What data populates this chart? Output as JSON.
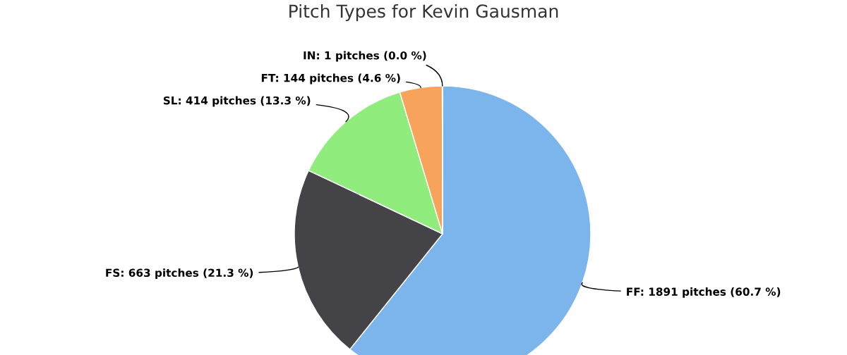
{
  "chart_data": {
    "type": "pie",
    "title": "Pitch Types for Kevin Gausman",
    "categories": [
      "FF: 1891 pitches (60.7 %)",
      "FS: 663 pitches (21.3 %)",
      "SL: 414 pitches (13.3 %)",
      "FT: 144 pitches (4.6 %)",
      "IN: 1 pitches (0.0 %)"
    ],
    "values": [
      1891,
      663,
      414,
      144,
      1
    ],
    "colors": [
      "#7cb5ec",
      "#434348",
      "#90ed7d",
      "#f7a35c",
      "#8085e9"
    ]
  }
}
